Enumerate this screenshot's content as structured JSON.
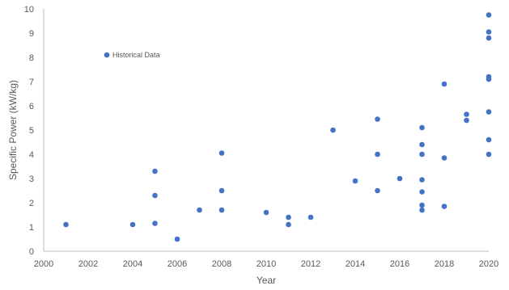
{
  "chart_data": {
    "type": "scatter",
    "title": "",
    "xlabel": "Year",
    "ylabel": "Specific Power (kW/kg)",
    "xlim": [
      2000,
      2020
    ],
    "ylim": [
      0,
      10
    ],
    "x_ticks": [
      "2000",
      "2002",
      "2004",
      "2006",
      "2008",
      "2010",
      "2012",
      "2014",
      "2016",
      "2018",
      "2020"
    ],
    "y_ticks": [
      "0",
      "1",
      "2",
      "3",
      "4",
      "5",
      "6",
      "7",
      "8",
      "9",
      "10"
    ],
    "grid": false,
    "legend_position": "top-left",
    "colors": {
      "marker": "#4472C4",
      "axis": "#bfbfbf",
      "text": "#595959"
    },
    "series": [
      {
        "name": "Historical Data",
        "points": [
          {
            "x": 2001,
            "y": 1.1
          },
          {
            "x": 2004,
            "y": 1.1
          },
          {
            "x": 2005,
            "y": 3.3
          },
          {
            "x": 2005,
            "y": 2.3
          },
          {
            "x": 2005,
            "y": 1.15
          },
          {
            "x": 2006,
            "y": 0.5
          },
          {
            "x": 2007,
            "y": 1.7
          },
          {
            "x": 2008,
            "y": 4.05
          },
          {
            "x": 2008,
            "y": 2.5
          },
          {
            "x": 2008,
            "y": 1.7
          },
          {
            "x": 2010,
            "y": 1.6
          },
          {
            "x": 2011,
            "y": 1.4
          },
          {
            "x": 2011,
            "y": 1.1
          },
          {
            "x": 2012,
            "y": 1.4
          },
          {
            "x": 2013,
            "y": 5.0
          },
          {
            "x": 2014,
            "y": 2.9
          },
          {
            "x": 2015,
            "y": 5.45
          },
          {
            "x": 2015,
            "y": 4.0
          },
          {
            "x": 2015,
            "y": 2.5
          },
          {
            "x": 2016,
            "y": 3.0
          },
          {
            "x": 2017,
            "y": 5.1
          },
          {
            "x": 2017,
            "y": 4.4
          },
          {
            "x": 2017,
            "y": 4.0
          },
          {
            "x": 2017,
            "y": 2.95
          },
          {
            "x": 2017,
            "y": 2.45
          },
          {
            "x": 2017,
            "y": 1.9
          },
          {
            "x": 2017,
            "y": 1.7
          },
          {
            "x": 2018,
            "y": 6.9
          },
          {
            "x": 2018,
            "y": 3.85
          },
          {
            "x": 2018,
            "y": 1.85
          },
          {
            "x": 2019,
            "y": 5.65
          },
          {
            "x": 2019,
            "y": 5.4
          },
          {
            "x": 2020,
            "y": 9.75
          },
          {
            "x": 2020,
            "y": 9.05
          },
          {
            "x": 2020,
            "y": 8.8
          },
          {
            "x": 2020,
            "y": 7.2
          },
          {
            "x": 2020,
            "y": 7.1
          },
          {
            "x": 2020,
            "y": 5.75
          },
          {
            "x": 2020,
            "y": 4.6
          },
          {
            "x": 2020,
            "y": 4.0
          }
        ]
      }
    ]
  }
}
